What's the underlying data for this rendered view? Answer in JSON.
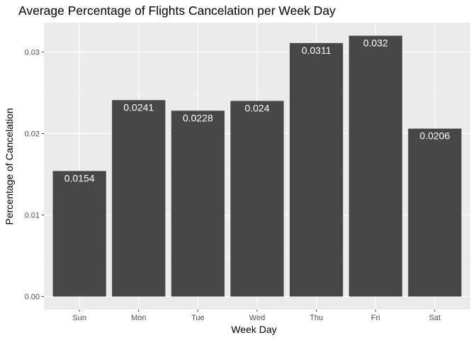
{
  "chart_data": {
    "type": "bar",
    "title": "Average Percentage of Flights Cancelation per Week Day",
    "xlabel": "Week Day",
    "ylabel": "Percentage of Cancelation",
    "categories": [
      "Sun",
      "Mon",
      "Tue",
      "Wed",
      "Thu",
      "Fri",
      "Sat"
    ],
    "values": [
      0.0154,
      0.0241,
      0.0228,
      0.024,
      0.0311,
      0.032,
      0.0206
    ],
    "data_labels": [
      "0.0154",
      "0.0241",
      "0.0228",
      "0.024",
      "0.0311",
      "0.032",
      "0.0206"
    ],
    "yticks": [
      0.0,
      0.01,
      0.02,
      0.03
    ],
    "ytick_labels": [
      "0.00",
      "0.01",
      "0.02",
      "0.03"
    ],
    "ylim": [
      -0.0016,
      0.0336
    ],
    "grid": true,
    "colors": {
      "bar": "#474747",
      "panel": "#ebebeb",
      "grid_major": "#ffffff",
      "grid_minor": "#f5f5f5",
      "label": "#ffffff"
    }
  }
}
